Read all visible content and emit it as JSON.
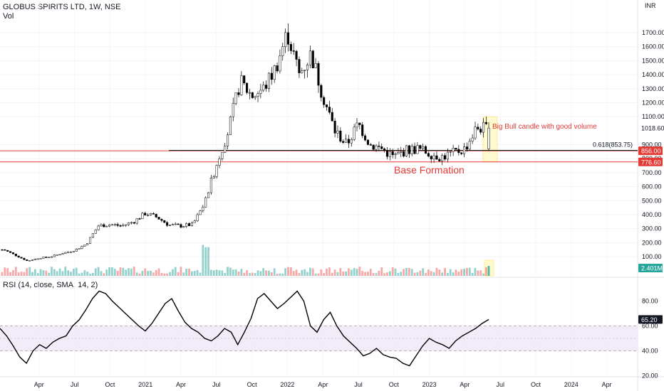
{
  "header": {
    "title": "GLOBUS SPIRITS LTD, 1W, NSE",
    "vol_label": "Vol",
    "rsi_label": "RSI (14, close, SMA, 14, 2)"
  },
  "colors": {
    "up": "#26a69a",
    "down": "#000000",
    "candle_up_body": "#ffffff",
    "candle_outline": "#000000",
    "volume_up": "#26a69a",
    "volume_down": "#ef5350",
    "support_line": "#e53935",
    "fib_line": "#000000",
    "annotation": "#e53935",
    "rsi_line": "#000000",
    "rsi_band": "#ede7f6",
    "highlight_box": "#fff9c4",
    "last_price_badge": "#131722",
    "price_badge_red": "#e53935",
    "volume_badge": "#26a69a"
  },
  "chart_data": [
    {
      "type": "candlestick",
      "title": "GLOBUS SPIRITS LTD, 1W, NSE",
      "currency": "INR",
      "y_ticks": [
        "1700.00",
        "1600.00",
        "1500.00",
        "1400.00",
        "1300.00",
        "1200.00",
        "1100.00",
        "900.00",
        "800.00",
        "700.00",
        "600.00",
        "500.00",
        "400.00",
        "300.00",
        "200.00",
        "100.00"
      ],
      "x_ticks": [
        "Apr",
        "Jul",
        "Oct",
        "2021",
        "Apr",
        "Jul",
        "Oct",
        "2022",
        "Apr",
        "Jul",
        "Oct",
        "2023",
        "Apr",
        "Jul",
        "Oct",
        "2024",
        "Apr"
      ],
      "ylim": [
        0,
        1800
      ],
      "price_path": [
        {
          "date": "2020-01",
          "close": 150
        },
        {
          "date": "2020-02",
          "close": 110
        },
        {
          "date": "2020-03",
          "close": 70
        },
        {
          "date": "2020-04",
          "close": 90
        },
        {
          "date": "2020-05",
          "close": 100
        },
        {
          "date": "2020-06",
          "close": 125
        },
        {
          "date": "2020-07",
          "close": 145
        },
        {
          "date": "2020-08",
          "close": 190
        },
        {
          "date": "2020-09",
          "close": 320
        },
        {
          "date": "2020-10",
          "close": 330
        },
        {
          "date": "2020-11",
          "close": 320
        },
        {
          "date": "2020-12",
          "close": 350
        },
        {
          "date": "2021-01",
          "close": 410
        },
        {
          "date": "2021-02",
          "close": 380
        },
        {
          "date": "2021-03",
          "close": 325
        },
        {
          "date": "2021-04",
          "close": 320
        },
        {
          "date": "2021-05",
          "close": 330
        },
        {
          "date": "2021-06",
          "close": 480
        },
        {
          "date": "2021-07",
          "close": 760
        },
        {
          "date": "2021-08",
          "close": 1000
        },
        {
          "date": "2021-09",
          "close": 1350
        },
        {
          "date": "2021-10",
          "close": 1250
        },
        {
          "date": "2021-11",
          "close": 1300
        },
        {
          "date": "2021-12",
          "close": 1450
        },
        {
          "date": "2022-01",
          "close": 1700
        },
        {
          "date": "2022-02",
          "close": 1400
        },
        {
          "date": "2022-03",
          "close": 1550
        },
        {
          "date": "2022-04",
          "close": 1250
        },
        {
          "date": "2022-05",
          "close": 1000
        },
        {
          "date": "2022-06",
          "close": 900
        },
        {
          "date": "2022-07",
          "close": 1050
        },
        {
          "date": "2022-08",
          "close": 900
        },
        {
          "date": "2022-09",
          "close": 870
        },
        {
          "date": "2022-10",
          "close": 810
        },
        {
          "date": "2022-11",
          "close": 860
        },
        {
          "date": "2022-12",
          "close": 870
        },
        {
          "date": "2023-01",
          "close": 840
        },
        {
          "date": "2023-02",
          "close": 810
        },
        {
          "date": "2023-03",
          "close": 840
        },
        {
          "date": "2023-04",
          "close": 870
        },
        {
          "date": "2023-05",
          "close": 1018.6
        }
      ],
      "last_price": "1018.60",
      "price_labels": [
        "856.00",
        "776.60"
      ],
      "fib_level_label": "0.618(853.75)",
      "fib_level_value": 853.75,
      "horizontal_lines": [
        856.0,
        776.6
      ],
      "annotations": [
        {
          "text": "Big Bull candle with good volume",
          "anchor_price": 1018.6
        },
        {
          "text": "Base Formation",
          "anchor_price": 720
        }
      ],
      "volume": {
        "last_value_label": "2.401M",
        "spike_dates": [
          "2021-06"
        ]
      }
    },
    {
      "type": "line",
      "title": "RSI (14, close, SMA, 14, 2)",
      "ylim": [
        20,
        100
      ],
      "y_ticks": [
        "80.00",
        "60.00",
        "40.00",
        "20.00"
      ],
      "band": [
        40,
        60
      ],
      "midline": 50,
      "last_value_label": "65.20",
      "series": [
        {
          "values": [
            58,
            52,
            44,
            35,
            30,
            40,
            45,
            42,
            47,
            50,
            52,
            60,
            65,
            73,
            82,
            88,
            86,
            80,
            75,
            70,
            65,
            60,
            56,
            62,
            70,
            78,
            82,
            72,
            63,
            58,
            55,
            50,
            48,
            52,
            58,
            55,
            45,
            55,
            66,
            82,
            86,
            80,
            74,
            78,
            83,
            88,
            80,
            60,
            55,
            65,
            71,
            60,
            52,
            47,
            42,
            36,
            38,
            42,
            37,
            35,
            34,
            30,
            28,
            36,
            44,
            50,
            47,
            45,
            42,
            48,
            52,
            55,
            58,
            62,
            65.2
          ]
        }
      ]
    }
  ]
}
